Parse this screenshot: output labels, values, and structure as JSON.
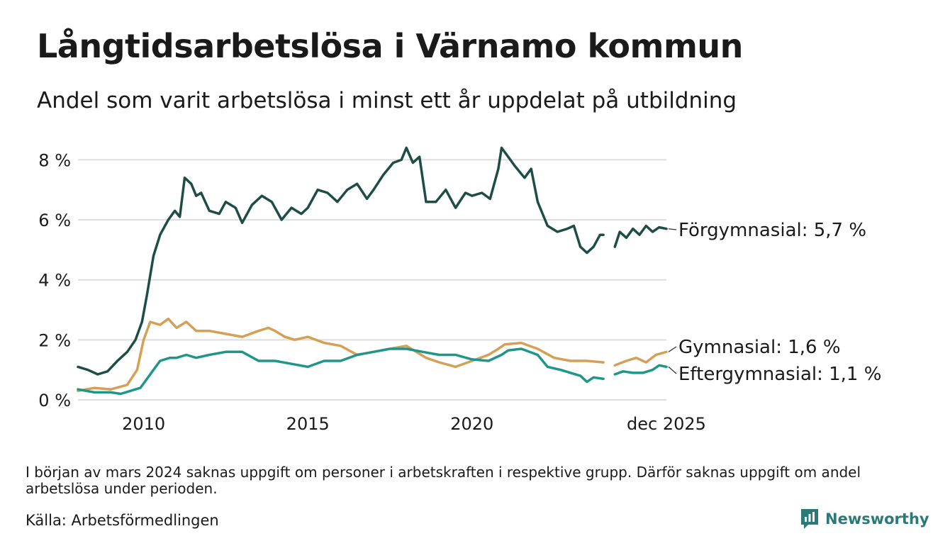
{
  "title": "Långtidsarbetslösa i Värnamo kommun",
  "subtitle": "Andel som varit arbetslösa i minst ett år uppdelat på utbildning",
  "note": "I början av mars 2024 saknas uppgift om personer i arbetskraften i respektive grupp. Därför saknas uppgift om andel arbetslösa under perioden.",
  "source": "Källa: Arbetsförmedlingen",
  "brand": "Newsworthy",
  "colors": {
    "forgymnasial": "#1e4d45",
    "gymnasial": "#d4a055",
    "eftergymnasial": "#1f9688",
    "grid": "#dddddd",
    "text": "#1a1a1a",
    "brand": "#2b7a78"
  },
  "chart_data": {
    "type": "line",
    "title": "Långtidsarbetslösa i Värnamo kommun",
    "xlabel": "",
    "ylabel": "",
    "ylim": [
      0,
      8.6
    ],
    "xlim": [
      2008.0,
      2025.92
    ],
    "y_ticks": [
      0,
      2,
      4,
      6,
      8
    ],
    "y_tick_labels": [
      "0 %",
      "2 %",
      "4 %",
      "6 %",
      "8 %"
    ],
    "x_ticks": [
      2010,
      2015,
      2020,
      2025.92
    ],
    "x_tick_labels": [
      "2010",
      "2015",
      "2020",
      "dec 2025"
    ],
    "grid": true,
    "gap": [
      2024.0,
      2024.35
    ],
    "series": [
      {
        "name": "Förgymnasial",
        "label": "Förgymnasial: 5,7 %",
        "color": "#1e4d45",
        "x": [
          2008.0,
          2008.3,
          2008.6,
          2008.9,
          2009.2,
          2009.5,
          2009.75,
          2009.95,
          2010.1,
          2010.3,
          2010.5,
          2010.75,
          2010.95,
          2011.1,
          2011.25,
          2011.45,
          2011.6,
          2011.75,
          2012.0,
          2012.3,
          2012.5,
          2012.8,
          2013.0,
          2013.3,
          2013.6,
          2013.9,
          2014.2,
          2014.5,
          2014.8,
          2015.0,
          2015.3,
          2015.6,
          2015.9,
          2016.2,
          2016.5,
          2016.8,
          2017.0,
          2017.3,
          2017.6,
          2017.85,
          2018.0,
          2018.2,
          2018.4,
          2018.6,
          2018.9,
          2019.2,
          2019.5,
          2019.8,
          2020.0,
          2020.3,
          2020.55,
          2020.8,
          2020.9,
          2021.1,
          2021.3,
          2021.6,
          2021.8,
          2022.0,
          2022.3,
          2022.6,
          2022.9,
          2023.1,
          2023.3,
          2023.5,
          2023.7,
          2023.9,
          2024.0,
          2024.35,
          2024.5,
          2024.7,
          2024.9,
          2025.1,
          2025.3,
          2025.5,
          2025.7,
          2025.92
        ],
        "values": [
          1.1,
          1.0,
          0.85,
          0.95,
          1.3,
          1.6,
          2.0,
          2.6,
          3.5,
          4.8,
          5.5,
          6.0,
          6.3,
          6.1,
          7.4,
          7.2,
          6.8,
          6.9,
          6.3,
          6.2,
          6.6,
          6.4,
          5.9,
          6.5,
          6.8,
          6.6,
          6.0,
          6.4,
          6.2,
          6.4,
          7.0,
          6.9,
          6.6,
          7.0,
          7.2,
          6.7,
          7.0,
          7.5,
          7.9,
          8.0,
          8.4,
          7.9,
          8.1,
          6.6,
          6.6,
          7.0,
          6.4,
          6.9,
          6.8,
          6.9,
          6.7,
          7.7,
          8.4,
          8.1,
          7.8,
          7.4,
          7.7,
          6.6,
          5.8,
          5.6,
          5.7,
          5.8,
          5.1,
          4.9,
          5.1,
          5.5,
          5.5,
          5.1,
          5.6,
          5.4,
          5.7,
          5.5,
          5.8,
          5.6,
          5.75,
          5.7
        ]
      },
      {
        "name": "Gymnasial",
        "label": "Gymnasial: 1,6 %",
        "color": "#d4a055",
        "x": [
          2008.0,
          2008.5,
          2009.0,
          2009.5,
          2009.8,
          2010.0,
          2010.2,
          2010.5,
          2010.75,
          2011.0,
          2011.3,
          2011.6,
          2012.0,
          2012.5,
          2013.0,
          2013.5,
          2013.8,
          2014.0,
          2014.3,
          2014.6,
          2015.0,
          2015.5,
          2016.0,
          2016.5,
          2017.0,
          2017.5,
          2018.0,
          2018.3,
          2018.6,
          2019.0,
          2019.5,
          2020.0,
          2020.5,
          2020.8,
          2021.0,
          2021.5,
          2022.0,
          2022.5,
          2023.0,
          2023.5,
          2024.0,
          2024.35,
          2024.7,
          2025.0,
          2025.3,
          2025.6,
          2025.92
        ],
        "values": [
          0.3,
          0.4,
          0.35,
          0.5,
          1.0,
          2.0,
          2.6,
          2.5,
          2.7,
          2.4,
          2.6,
          2.3,
          2.3,
          2.2,
          2.1,
          2.3,
          2.4,
          2.3,
          2.1,
          2.0,
          2.1,
          1.9,
          1.8,
          1.5,
          1.6,
          1.7,
          1.8,
          1.6,
          1.4,
          1.25,
          1.1,
          1.3,
          1.5,
          1.7,
          1.85,
          1.9,
          1.7,
          1.4,
          1.3,
          1.3,
          1.25,
          1.15,
          1.3,
          1.4,
          1.25,
          1.5,
          1.6
        ]
      },
      {
        "name": "Eftergymnasial",
        "label": "Eftergymnasial: 1,1 %",
        "color": "#1f9688",
        "x": [
          2008.0,
          2008.5,
          2009.0,
          2009.3,
          2009.6,
          2009.9,
          2010.1,
          2010.3,
          2010.5,
          2010.8,
          2011.0,
          2011.3,
          2011.6,
          2012.0,
          2012.5,
          2013.0,
          2013.5,
          2014.0,
          2014.5,
          2015.0,
          2015.5,
          2016.0,
          2016.5,
          2017.0,
          2017.5,
          2018.0,
          2018.5,
          2019.0,
          2019.5,
          2020.0,
          2020.5,
          2020.9,
          2021.1,
          2021.5,
          2022.0,
          2022.3,
          2022.7,
          2023.0,
          2023.3,
          2023.5,
          2023.7,
          2024.0,
          2024.35,
          2024.6,
          2024.9,
          2025.2,
          2025.5,
          2025.7,
          2025.92
        ],
        "values": [
          0.35,
          0.25,
          0.25,
          0.2,
          0.3,
          0.4,
          0.7,
          1.0,
          1.3,
          1.4,
          1.4,
          1.5,
          1.4,
          1.5,
          1.6,
          1.6,
          1.3,
          1.3,
          1.2,
          1.1,
          1.3,
          1.3,
          1.5,
          1.6,
          1.7,
          1.7,
          1.6,
          1.5,
          1.5,
          1.35,
          1.3,
          1.5,
          1.65,
          1.7,
          1.5,
          1.1,
          1.0,
          0.9,
          0.8,
          0.6,
          0.75,
          0.7,
          0.85,
          0.95,
          0.9,
          0.9,
          1.0,
          1.15,
          1.1
        ]
      }
    ]
  }
}
